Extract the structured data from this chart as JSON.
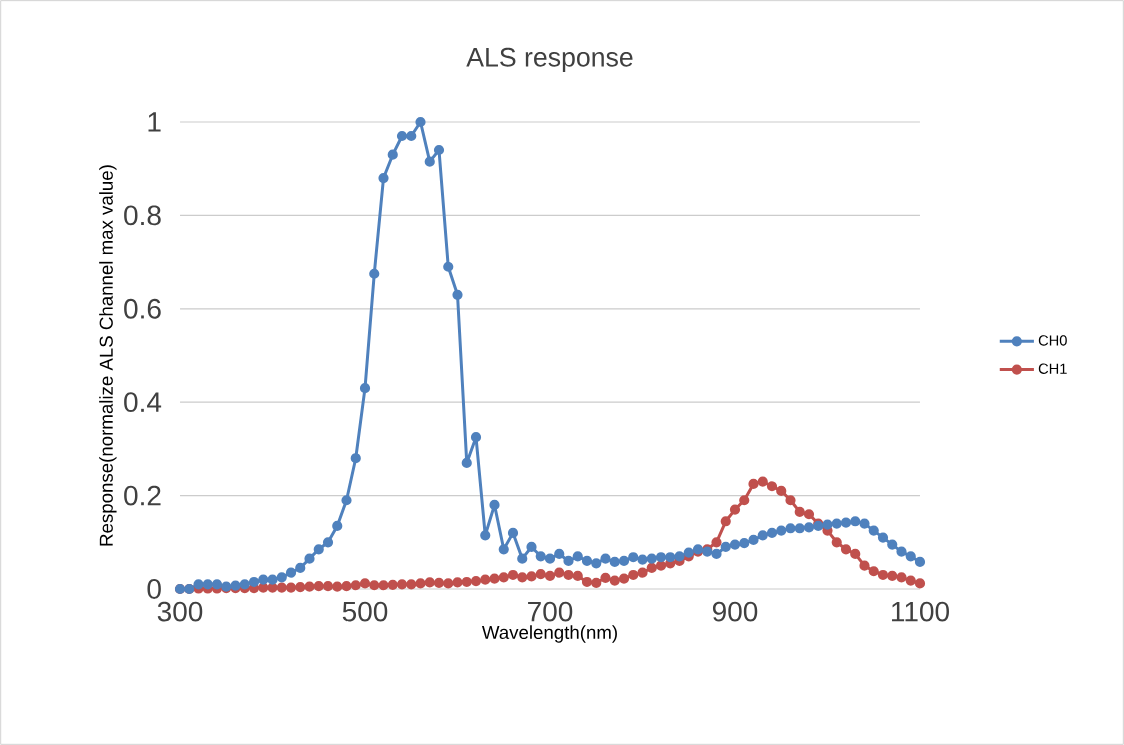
{
  "chart_data": {
    "type": "line",
    "title": "ALS response",
    "xlabel": "Wavelength(nm)",
    "ylabel": "Response(normalize ALS Channel max value)",
    "x": [
      300,
      310,
      320,
      330,
      340,
      350,
      360,
      370,
      380,
      390,
      400,
      410,
      420,
      430,
      440,
      450,
      460,
      470,
      480,
      490,
      500,
      510,
      520,
      530,
      540,
      550,
      560,
      570,
      580,
      590,
      600,
      610,
      620,
      630,
      640,
      650,
      660,
      670,
      680,
      690,
      700,
      710,
      720,
      730,
      740,
      750,
      760,
      770,
      780,
      790,
      800,
      810,
      820,
      830,
      840,
      850,
      860,
      870,
      880,
      890,
      900,
      910,
      920,
      930,
      940,
      950,
      960,
      970,
      980,
      990,
      1000,
      1010,
      1020,
      1030,
      1040,
      1050,
      1060,
      1070,
      1080,
      1090,
      1100
    ],
    "series": [
      {
        "name": "CH0",
        "color": "#4f81bd",
        "values": [
          0.0,
          0.0,
          0.01,
          0.01,
          0.01,
          0.005,
          0.007,
          0.01,
          0.015,
          0.02,
          0.02,
          0.025,
          0.035,
          0.045,
          0.065,
          0.085,
          0.1,
          0.135,
          0.19,
          0.28,
          0.43,
          0.675,
          0.88,
          0.93,
          0.97,
          0.97,
          1.0,
          0.915,
          0.94,
          0.69,
          0.63,
          0.27,
          0.325,
          0.115,
          0.18,
          0.085,
          0.12,
          0.065,
          0.09,
          0.07,
          0.065,
          0.075,
          0.06,
          0.07,
          0.06,
          0.055,
          0.065,
          0.058,
          0.06,
          0.068,
          0.063,
          0.065,
          0.068,
          0.068,
          0.07,
          0.078,
          0.085,
          0.08,
          0.075,
          0.09,
          0.095,
          0.098,
          0.105,
          0.115,
          0.12,
          0.125,
          0.13,
          0.13,
          0.132,
          0.135,
          0.138,
          0.14,
          0.142,
          0.145,
          0.14,
          0.125,
          0.11,
          0.095,
          0.08,
          0.07,
          0.058
        ]
      },
      {
        "name": "CH1",
        "color": "#c0504d",
        "values": [
          0.0,
          0.0,
          0.001,
          0.001,
          0.001,
          0.002,
          0.002,
          0.002,
          0.002,
          0.003,
          0.003,
          0.003,
          0.003,
          0.004,
          0.005,
          0.006,
          0.006,
          0.005,
          0.006,
          0.008,
          0.012,
          0.008,
          0.008,
          0.009,
          0.01,
          0.01,
          0.012,
          0.014,
          0.013,
          0.012,
          0.014,
          0.015,
          0.017,
          0.02,
          0.022,
          0.025,
          0.03,
          0.025,
          0.027,
          0.032,
          0.028,
          0.035,
          0.03,
          0.028,
          0.015,
          0.013,
          0.024,
          0.018,
          0.022,
          0.03,
          0.035,
          0.045,
          0.05,
          0.055,
          0.06,
          0.07,
          0.08,
          0.085,
          0.1,
          0.145,
          0.17,
          0.19,
          0.225,
          0.23,
          0.22,
          0.21,
          0.19,
          0.165,
          0.16,
          0.14,
          0.125,
          0.1,
          0.085,
          0.075,
          0.05,
          0.038,
          0.03,
          0.028,
          0.025,
          0.018,
          0.012
        ]
      }
    ],
    "xlim": [
      300,
      1100
    ],
    "xticks": [
      300,
      500,
      700,
      900,
      1100
    ],
    "ylim": [
      0,
      1
    ],
    "yticks": [
      0,
      0.2,
      0.4,
      0.6,
      0.8,
      1
    ],
    "grid": "y",
    "legend": "right",
    "marker": "circle",
    "line_style": "solid"
  }
}
